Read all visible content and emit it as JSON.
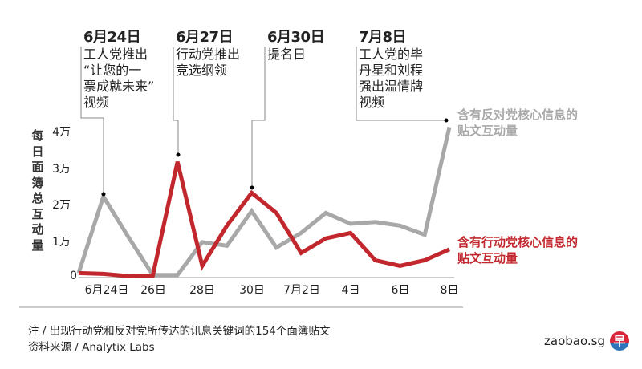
{
  "annotations": [
    {
      "date": "6月24日",
      "text": "工人党推出\n“让您的一\n票成就未来”\n视频"
    },
    {
      "date": "6月27日",
      "text": "行动党推出\n竞选纲领"
    },
    {
      "date": "6月30日",
      "text": "提名日"
    },
    {
      "date": "7月8日",
      "text": "工人党的毕\n丹星和刘程\n强出温情牌\n视频"
    }
  ],
  "axis": {
    "ylabel": "每日面簿总互动量",
    "yticks": [
      "0",
      "1万",
      "2万",
      "3万",
      "4万"
    ],
    "xticks": [
      "6月24日",
      "26日",
      "28日",
      "30日",
      "7月2日",
      "4日",
      "6日",
      "8日"
    ]
  },
  "legend": {
    "opposition": "含有反对党核心信息的\n贴文互动量",
    "pap": "含有行动党核心信息的\n贴文互动量"
  },
  "footer": {
    "note": "注 / 出现行动党和反对党所传达的讯息关键词的154个面簿贴文",
    "source": "资料来源 / Analytix Labs"
  },
  "brand": {
    "name": "zaobao.sg",
    "logo_glyph": "早"
  },
  "colors": {
    "opposition": "#a8a8a8",
    "pap": "#c1272d",
    "axis": "#999999",
    "text": "#222222"
  },
  "chart_data": {
    "type": "line",
    "title": "",
    "xlabel": "",
    "ylabel": "每日面簿总互动量",
    "ylim": [
      0,
      40000
    ],
    "x": [
      "6/23",
      "6/24",
      "6/25",
      "6/26",
      "6/27",
      "6/28",
      "6/29",
      "6/30",
      "7/1",
      "7/2",
      "7/3",
      "7/4",
      "7/5",
      "7/6",
      "7/7",
      "7/8"
    ],
    "xtick_labels": [
      "6月24日",
      "26日",
      "28日",
      "30日",
      "7月2日",
      "4日",
      "6日",
      "8日"
    ],
    "ytick_labels": [
      "0",
      "1万",
      "2万",
      "3万",
      "4万"
    ],
    "grid": false,
    "legend_position": "right (inline labels)",
    "series": [
      {
        "name": "含有反对党核心信息的贴文互动量",
        "color": "#a8a8a8",
        "values": [
          1000,
          22000,
          11000,
          500,
          500,
          9500,
          8500,
          18000,
          8000,
          12000,
          17500,
          14500,
          15000,
          14000,
          11500,
          41000
        ]
      },
      {
        "name": "含有行动党核心信息的贴文互动量",
        "color": "#c1272d",
        "values": [
          1000,
          800,
          200,
          300,
          31500,
          3000,
          14000,
          23000,
          17500,
          6500,
          10500,
          12000,
          4500,
          3000,
          4500,
          7500
        ]
      }
    ],
    "annotations": [
      {
        "x": "6/24",
        "series": "opposition",
        "label": "6月24日 工人党推出“让您的一票成就未来”视频"
      },
      {
        "x": "6/27",
        "series": "pap",
        "label": "6月27日 行动党推出竞选纲领"
      },
      {
        "x": "6/30",
        "series": "pap",
        "label": "6月30日 提名日"
      },
      {
        "x": "7/8",
        "series": "opposition",
        "label": "7月8日 工人党的毕丹星和刘程强出温情牌视频"
      }
    ]
  }
}
